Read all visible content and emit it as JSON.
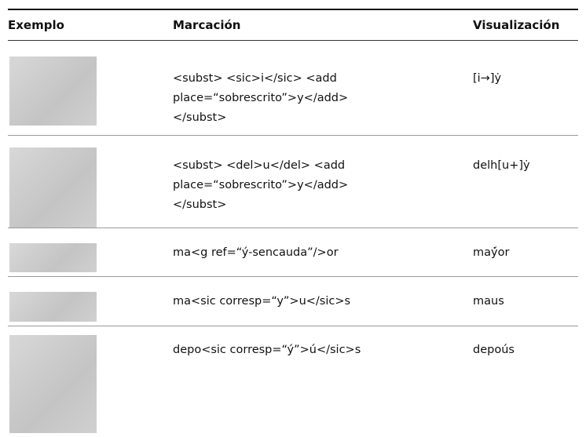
{
  "table": {
    "header": [
      "Exemplo",
      "Marcación",
      "Visualización"
    ],
    "rows": [
      {
        "markup": [
          "<subst> <sic>i</sic> <add",
          "place=“sobrescrito”>y</add>",
          "</subst>"
        ],
        "display": "[i→]ẏ"
      },
      {
        "markup": [
          "<subst> <del>u</del> <add",
          "place=“sobrescrito”>y</add>",
          "</subst>"
        ],
        "display": "delh[u+]ẏ"
      },
      {
        "markup": [
          "ma<g ref=“ý-sencauda”/>or"
        ],
        "display": "maẏ́or"
      },
      {
        "markup": [
          "ma<sic corresp=“y”>u</sic>s"
        ],
        "display": "maus"
      },
      {
        "markup": [
          "depo<sic corresp=“ý”>ú</sic>s"
        ],
        "display": "depoús"
      }
    ]
  }
}
